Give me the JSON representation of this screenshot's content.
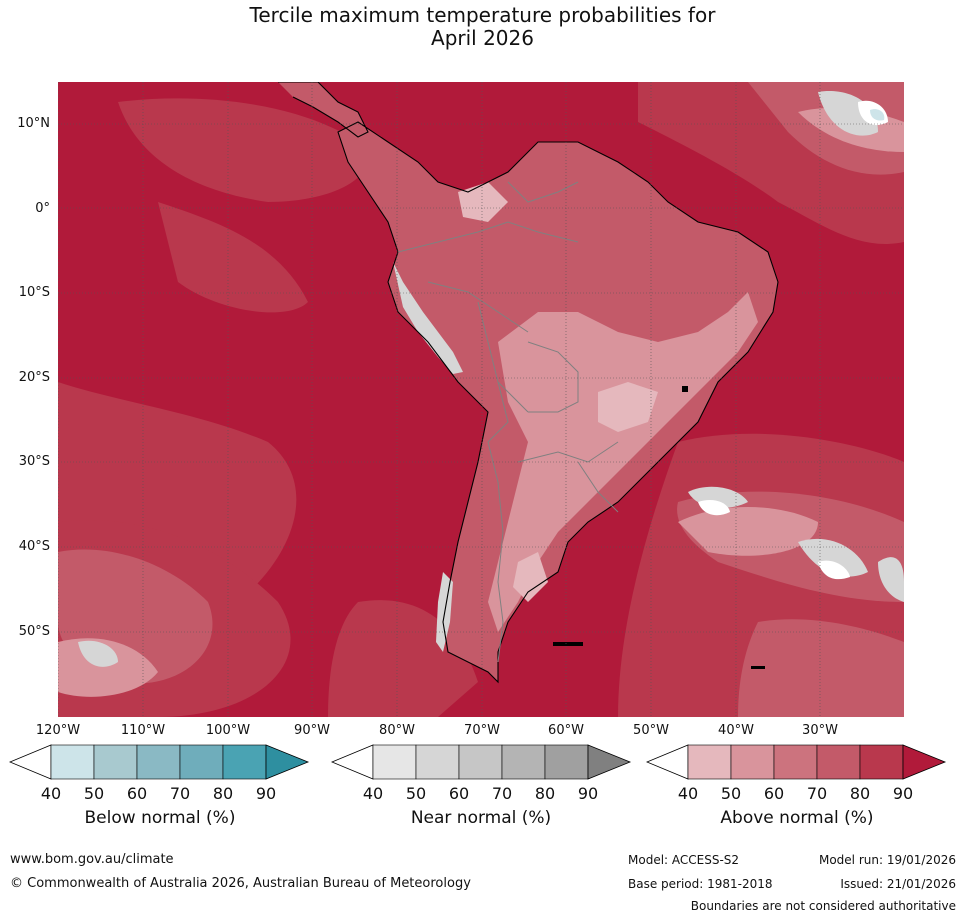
{
  "title_line1": "Tercile maximum temperature probabilities for",
  "title_line2": "April 2026",
  "lat_labels": [
    "10°N",
    "0°",
    "10°S",
    "20°S",
    "30°S",
    "40°S",
    "50°S"
  ],
  "lon_labels": [
    "120°W",
    "110°W",
    "100°W",
    "90°W",
    "80°W",
    "70°W",
    "60°W",
    "50°W",
    "40°W",
    "30°W"
  ],
  "colorbars": [
    {
      "label": "Below normal (%)",
      "ticks": [
        "40",
        "50",
        "60",
        "70",
        "80",
        "90"
      ],
      "colors": [
        "#cde4e9",
        "#a8c9cf",
        "#8ab9c4",
        "#6fadbb",
        "#4aa3b3",
        "#2e8fa0"
      ]
    },
    {
      "label": "Near normal (%)",
      "ticks": [
        "40",
        "50",
        "60",
        "70",
        "80",
        "90"
      ],
      "colors": [
        "#e6e6e6",
        "#d6d6d6",
        "#c6c6c6",
        "#b4b4b4",
        "#a0a0a0",
        "#808080"
      ]
    },
    {
      "label": "Above normal (%)",
      "ticks": [
        "40",
        "50",
        "60",
        "70",
        "80",
        "90"
      ],
      "colors": [
        "#e5b8bd",
        "#d9949c",
        "#cc737e",
        "#c35a69",
        "#b9384d",
        "#b11a3a"
      ]
    }
  ],
  "map_colors": {
    "ocean_deep": "#b11a3a",
    "ocean_mid": "#b9384d",
    "land_base": "#c35a69",
    "land_light": "#d9949c",
    "land_lighter": "#e5b8bd",
    "near_normal_patch": "#d6d6d6",
    "coastline": "#000000",
    "borders": "#808080"
  },
  "footer": {
    "url": "www.bom.gov.au/climate",
    "copyright": "© Commonwealth of Australia 2026, Australian Bureau of Meteorology",
    "model": "Model: ACCESS-S2",
    "model_run": "Model run: 19/01/2026",
    "base_period": "Base period: 1981-2018",
    "issued": "Issued: 21/01/2026",
    "disclaimer": "Boundaries are not considered authoritative"
  }
}
